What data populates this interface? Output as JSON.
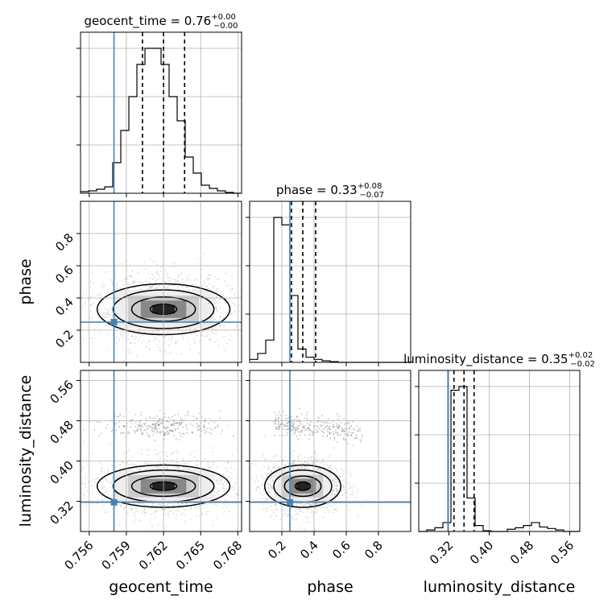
{
  "chart_data": {
    "type": "corner",
    "parameters": [
      "geocent_time",
      "phase",
      "luminosity_distance"
    ],
    "titles": [
      {
        "text": "geocent_time = 0.76",
        "sup": "+0.00",
        "sub": "−0.00"
      },
      {
        "text": "phase = 0.33",
        "sup": "+0.08",
        "sub": "−0.07"
      },
      {
        "text": "luminosity_distance = 0.35",
        "sup": "+0.02",
        "sub": "−0.02"
      }
    ],
    "axes": [
      {
        "name": "geocent_time",
        "range": [
          0.7553,
          0.7683
        ],
        "ticks": [
          0.756,
          0.759,
          0.762,
          0.765,
          0.768
        ],
        "tick_labels": [
          "0.756",
          "0.759",
          "0.762",
          "0.765",
          "0.768"
        ]
      },
      {
        "name": "phase",
        "range": [
          0.0,
          1.0
        ],
        "ticks": [
          0.2,
          0.4,
          0.6,
          0.8
        ],
        "tick_labels": [
          "0.2",
          "0.4",
          "0.6",
          "0.8"
        ]
      },
      {
        "name": "luminosity_distance",
        "range": [
          0.26,
          0.58
        ],
        "ticks": [
          0.32,
          0.4,
          0.48,
          0.56
        ],
        "tick_labels": [
          "0.32",
          "0.40",
          "0.48",
          "0.56"
        ]
      }
    ],
    "truths": [
      0.758,
      0.25,
      0.318
    ],
    "quantiles": [
      [
        0.7603,
        0.762,
        0.7637
      ],
      [
        0.26,
        0.33,
        0.41
      ],
      [
        0.33,
        0.35,
        0.37
      ]
    ],
    "histograms": [
      {
        "edges_start": 0.7553,
        "bin_width": 0.00065,
        "counts": [
          2,
          3,
          5,
          8,
          38,
          78,
          120,
          160,
          180,
          180,
          160,
          120,
          90,
          45,
          25,
          10,
          6,
          3,
          1,
          0
        ]
      },
      {
        "edges_start": 0.0,
        "bin_width": 0.05,
        "counts": [
          4,
          12,
          30,
          195,
          185,
          90,
          18,
          7,
          4,
          2,
          1,
          0,
          0,
          0,
          0,
          0,
          0,
          0,
          0,
          0
        ]
      },
      {
        "edges_start": 0.26,
        "bin_width": 0.016,
        "counts": [
          0,
          2,
          5,
          12,
          190,
          195,
          45,
          8,
          1,
          0,
          0,
          3,
          5,
          8,
          12,
          6,
          4,
          2,
          0,
          0
        ]
      }
    ],
    "grid": true
  }
}
